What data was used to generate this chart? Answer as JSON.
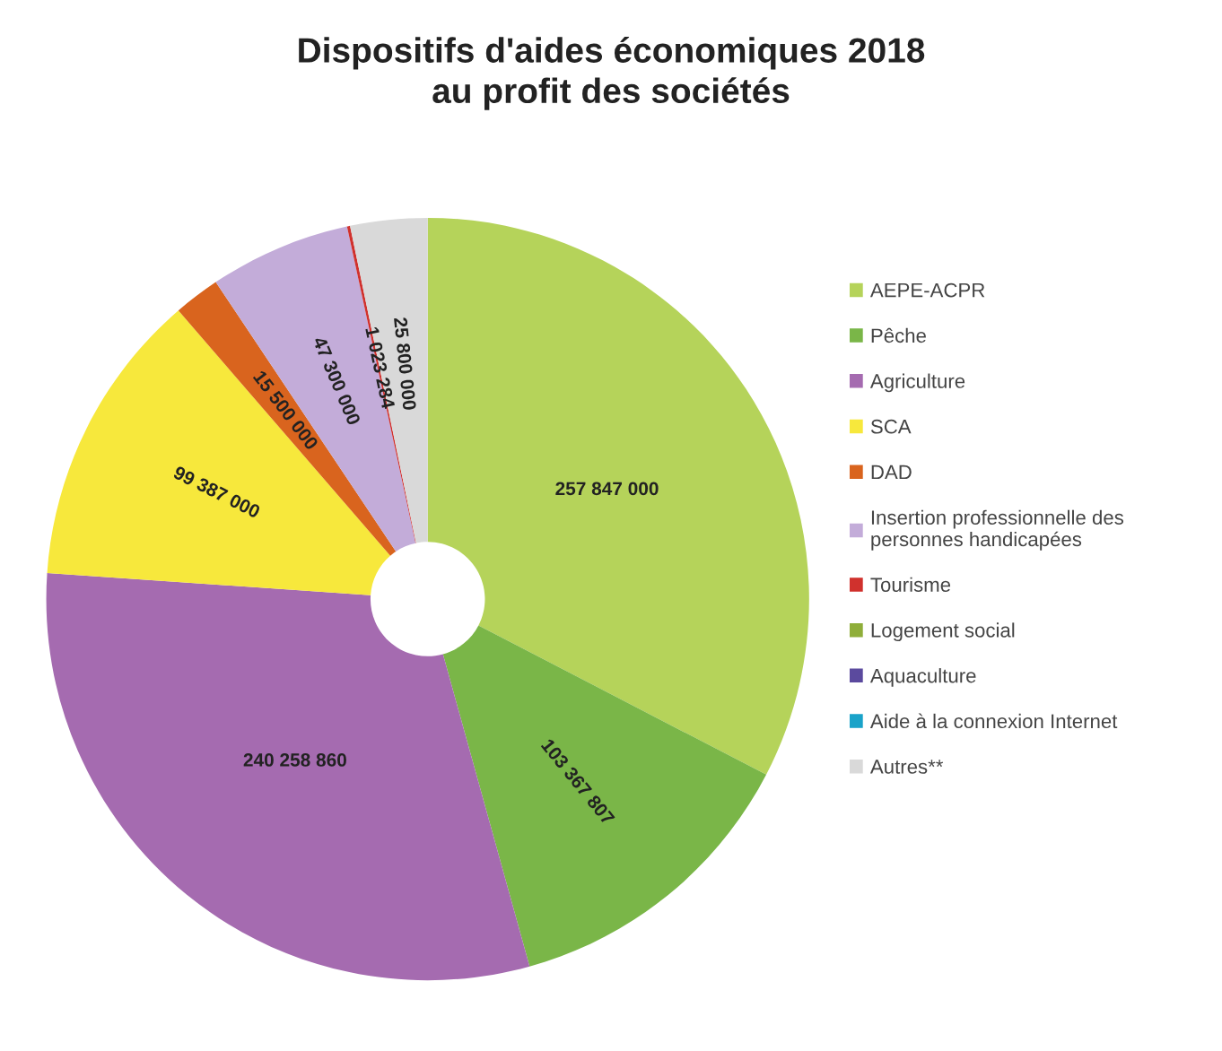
{
  "chart_data": {
    "type": "donut",
    "title": "Dispositifs d'aides économiques 2018\nau profit des sociétés",
    "categories": [
      "AEPE-ACPR",
      "Pêche",
      "Agriculture",
      "SCA",
      "DAD",
      "Insertion professionnelle des personnes handicapées",
      "Tourisme",
      "Logement social",
      "Aquaculture",
      "Aide à la connexion Internet",
      "Autres**"
    ],
    "values": [
      257847000,
      103367807,
      240258860,
      99387000,
      15500000,
      47300000,
      1023284,
      0,
      0,
      0,
      25800000
    ],
    "value_labels": [
      "257 847 000",
      "103 367 807",
      "240 258 860",
      "99 387 000",
      "15 500 000",
      "47 300 000",
      "1 023 284",
      null,
      null,
      null,
      "25 800 000"
    ],
    "colors": [
      "#b5d35a",
      "#7ab648",
      "#a56bb0",
      "#f7e83c",
      "#d9641e",
      "#c3acd9",
      "#d0312d",
      "#8fae3a",
      "#5b4a9e",
      "#1aa3c9",
      "#d9d9d9"
    ],
    "legend": "right"
  }
}
